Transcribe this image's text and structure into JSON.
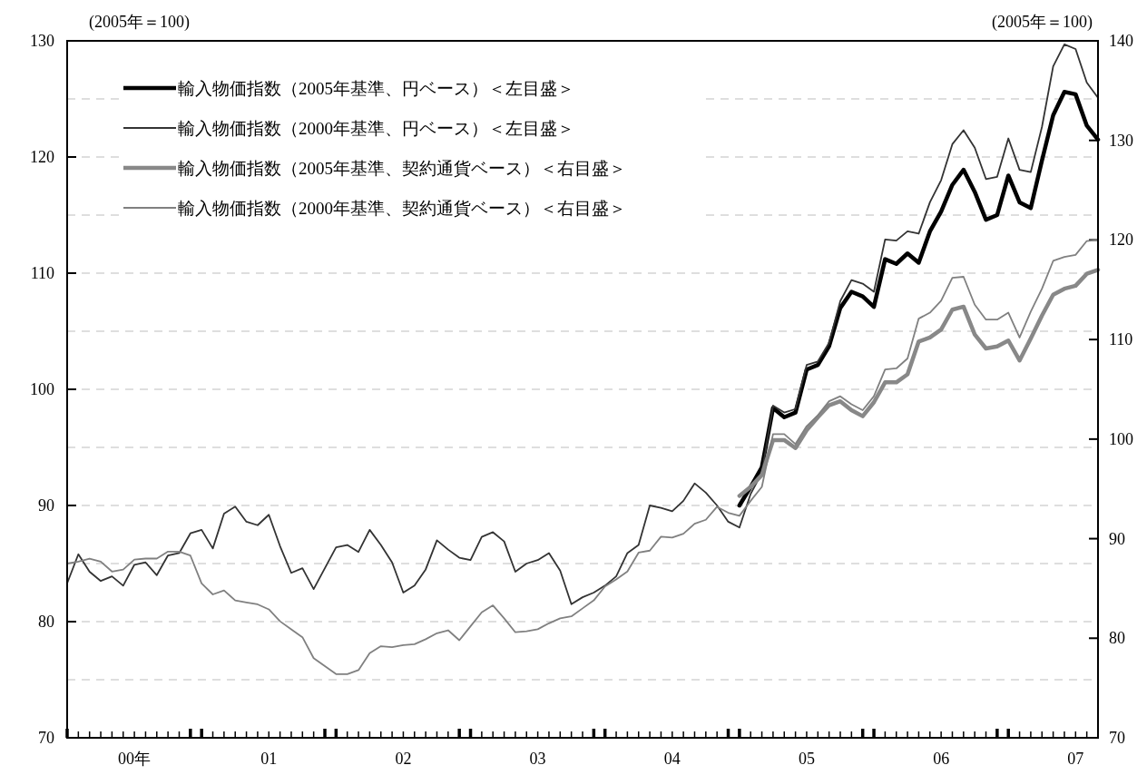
{
  "chart_data": {
    "type": "line",
    "ylabel": "(2005年＝100)",
    "y2label": "(2005年＝100)",
    "categories": [
      null,
      null,
      null,
      null,
      null,
      null,
      "00年",
      null,
      null,
      null,
      null,
      null,
      null,
      null,
      null,
      null,
      null,
      null,
      "01",
      null,
      null,
      null,
      null,
      null,
      null,
      null,
      null,
      null,
      null,
      null,
      "02",
      null,
      null,
      null,
      null,
      null,
      null,
      null,
      null,
      null,
      null,
      null,
      "03",
      null,
      null,
      null,
      null,
      null,
      null,
      null,
      null,
      null,
      null,
      null,
      "04",
      null,
      null,
      null,
      null,
      null,
      null,
      null,
      null,
      null,
      null,
      null,
      "05",
      null,
      null,
      null,
      null,
      null,
      null,
      null,
      null,
      null,
      null,
      null,
      "06",
      null,
      null,
      null,
      null,
      null,
      null,
      null,
      null,
      null,
      null,
      null,
      "07",
      null,
      null
    ],
    "ylim": [
      70,
      130
    ],
    "yticks": [
      70,
      {
        "value": 75,
        "label": null
      },
      80,
      {
        "value": 85,
        "label": null
      },
      90,
      {
        "value": 95,
        "label": null
      },
      100,
      {
        "value": 105,
        "label": null
      },
      110,
      {
        "value": 115,
        "label": null
      },
      120,
      {
        "value": 125,
        "label": null
      },
      130
    ],
    "y2lim": [
      70,
      140
    ],
    "y2ticks": [
      70,
      80,
      90,
      100,
      110,
      120,
      130,
      140
    ],
    "grid": "y",
    "legend": "top left",
    "line_style": "solid",
    "marker": "none",
    "series": [
      {
        "name": "輸入物価指数（2005年基準、円ベース）＜左目盛＞",
        "color": "#000000",
        "values": [
          null,
          null,
          null,
          null,
          null,
          null,
          null,
          null,
          null,
          null,
          null,
          null,
          null,
          null,
          null,
          null,
          null,
          null,
          null,
          null,
          null,
          null,
          null,
          null,
          null,
          null,
          null,
          null,
          null,
          null,
          null,
          null,
          null,
          null,
          null,
          null,
          null,
          null,
          null,
          null,
          null,
          null,
          null,
          null,
          null,
          null,
          null,
          null,
          null,
          null,
          null,
          null,
          null,
          null,
          null,
          null,
          null,
          null,
          null,
          null,
          90.0,
          91.6,
          93.3,
          98.4,
          97.6,
          98.0,
          101.7,
          102.1,
          103.7,
          107.0,
          108.4,
          108.0,
          107.1,
          111.2,
          110.8,
          111.7,
          110.9,
          113.6,
          115.3,
          117.6,
          118.9,
          117.0,
          114.6,
          115.0,
          118.4,
          116.1,
          115.6,
          119.7,
          123.6,
          125.6,
          125.4,
          122.7,
          121.5
        ]
      },
      {
        "name": "輸入物価指数（2000年基準、円ベース）＜左目盛＞",
        "color": "#333333",
        "values": [
          83.3,
          85.8,
          84.3,
          83.5,
          83.9,
          83.1,
          84.9,
          85.1,
          84.0,
          85.7,
          85.9,
          87.6,
          87.9,
          86.3,
          89.3,
          89.9,
          88.6,
          88.3,
          89.2,
          86.5,
          84.2,
          84.6,
          82.8,
          84.6,
          86.4,
          86.6,
          86.0,
          87.9,
          86.6,
          85.1,
          82.5,
          83.1,
          84.5,
          87.0,
          86.2,
          85.5,
          85.3,
          87.3,
          87.7,
          86.9,
          84.3,
          85.0,
          85.3,
          85.9,
          84.4,
          81.5,
          82.1,
          82.5,
          83.1,
          83.9,
          85.9,
          86.6,
          90.0,
          89.8,
          89.5,
          90.4,
          91.9,
          91.1,
          90.0,
          88.6,
          88.1,
          91.0,
          92.8,
          98.6,
          98.0,
          98.3,
          102.1,
          102.4,
          104.0,
          107.6,
          109.4,
          109.1,
          108.4,
          112.9,
          112.8,
          113.6,
          113.4,
          116.1,
          118.0,
          121.1,
          122.3,
          120.8,
          118.1,
          118.3,
          121.6,
          118.9,
          118.7,
          122.6,
          127.8,
          129.7,
          129.3,
          126.4,
          125.1
        ]
      },
      {
        "name": "輸入物価指数（2005年基準、契約通貨ベース）＜右目盛＞",
        "color": "#888888",
        "axis": "y2",
        "values": [
          null,
          null,
          null,
          null,
          null,
          null,
          null,
          null,
          null,
          null,
          null,
          null,
          null,
          null,
          null,
          null,
          null,
          null,
          null,
          null,
          null,
          null,
          null,
          null,
          null,
          null,
          null,
          null,
          null,
          null,
          null,
          null,
          null,
          null,
          null,
          null,
          null,
          null,
          null,
          null,
          null,
          null,
          null,
          null,
          null,
          null,
          null,
          null,
          null,
          null,
          null,
          null,
          null,
          null,
          null,
          null,
          null,
          null,
          null,
          null,
          94.3,
          95.2,
          96.4,
          99.9,
          99.9,
          99.1,
          100.9,
          102.2,
          103.4,
          103.8,
          102.9,
          102.3,
          103.7,
          105.7,
          105.7,
          106.5,
          109.8,
          110.2,
          111.0,
          113.0,
          113.3,
          110.5,
          109.1,
          109.3,
          109.9,
          107.9,
          110.1,
          112.4,
          114.5,
          115.1,
          115.4,
          116.6,
          117.0
        ]
      },
      {
        "name": "輸入物価指数（2000年基準、契約通貨ベース）＜右目盛＞",
        "color": "#808080",
        "axis": "y2",
        "values": [
          87.5,
          87.7,
          88.0,
          87.7,
          86.7,
          86.9,
          87.9,
          88.0,
          88.0,
          88.7,
          88.7,
          88.3,
          85.5,
          84.4,
          84.8,
          83.8,
          83.6,
          83.4,
          82.9,
          81.7,
          80.9,
          80.1,
          78.0,
          77.2,
          76.4,
          76.4,
          76.8,
          78.5,
          79.2,
          79.1,
          79.3,
          79.4,
          79.9,
          80.5,
          80.8,
          79.8,
          81.2,
          82.6,
          83.3,
          82.0,
          80.6,
          80.7,
          80.9,
          81.5,
          82.0,
          82.2,
          83.0,
          83.8,
          85.2,
          85.9,
          86.7,
          88.6,
          88.8,
          90.2,
          90.1,
          90.5,
          91.5,
          91.9,
          93.2,
          92.6,
          92.3,
          93.8,
          95.2,
          100.5,
          100.5,
          99.5,
          101.3,
          102.4,
          103.8,
          104.3,
          103.5,
          102.9,
          104.3,
          107.0,
          107.1,
          108.1,
          112.1,
          112.7,
          113.9,
          116.2,
          116.3,
          113.5,
          112.0,
          112.0,
          112.7,
          110.2,
          112.8,
          115.1,
          117.9,
          118.3,
          118.5,
          119.9,
          120.0
        ]
      }
    ]
  }
}
